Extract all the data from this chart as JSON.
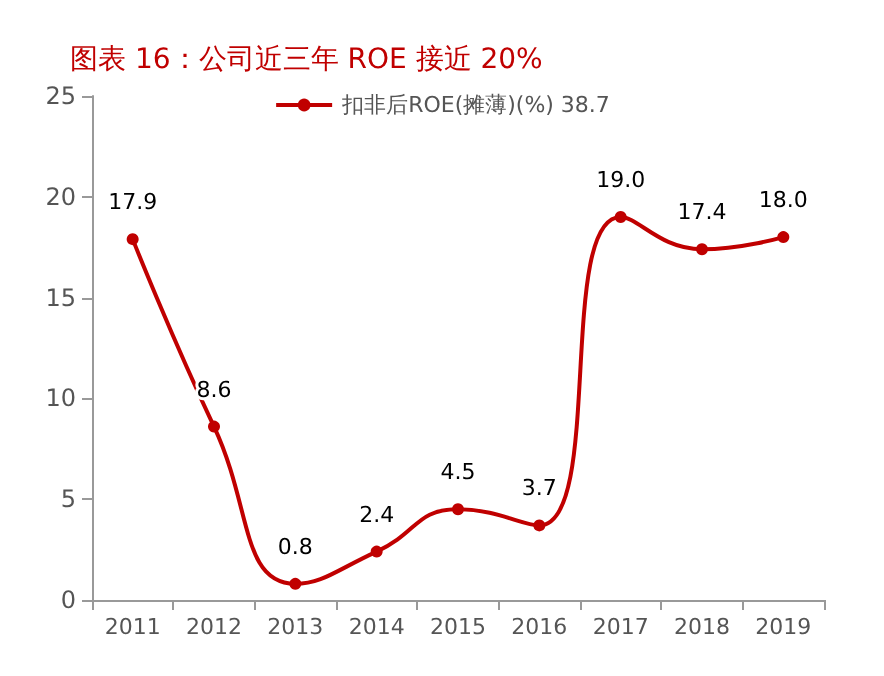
{
  "chart_data": {
    "type": "line",
    "title": "图表 16：公司近三年 ROE 接近 20%",
    "categories": [
      "2011",
      "2012",
      "2013",
      "2014",
      "2015",
      "2016",
      "2017",
      "2018",
      "2019"
    ],
    "series": [
      {
        "name": "扣非后ROE(摊薄)(%) 38.7",
        "color": "#c00000",
        "values": [
          17.9,
          8.6,
          0.8,
          2.4,
          4.5,
          3.7,
          19.0,
          17.4,
          18.0
        ],
        "value_labels": [
          "17.9",
          "8.6",
          "0.8",
          "2.4",
          "4.5",
          "3.7",
          "19.0",
          "17.4",
          "18.0"
        ]
      }
    ],
    "ylim": [
      0,
      25
    ],
    "yticks": [
      0,
      5,
      10,
      15,
      20,
      25
    ],
    "legend": "top",
    "marker": "circle",
    "grid": false
  }
}
